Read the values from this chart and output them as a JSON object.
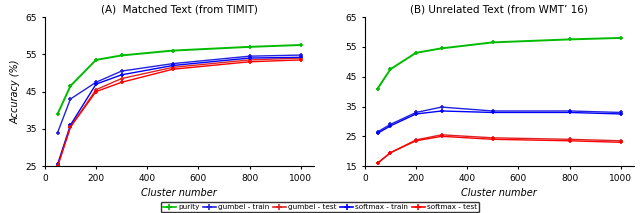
{
  "x": [
    50,
    100,
    200,
    300,
    500,
    800,
    1000
  ],
  "panel_A": {
    "title": "(A)  Matched Text (from TIMIT)",
    "purity": [
      39.0,
      46.5,
      53.5,
      54.7,
      56.0,
      57.0,
      57.5
    ],
    "gumbel_train": [
      34.0,
      43.0,
      47.5,
      50.5,
      52.5,
      54.5,
      54.8
    ],
    "gumbel_test": [
      25.0,
      35.5,
      45.5,
      48.5,
      51.5,
      53.5,
      54.0
    ],
    "softmax_train": [
      25.5,
      36.0,
      47.0,
      49.5,
      52.0,
      54.0,
      54.2
    ],
    "softmax_test": [
      25.0,
      35.5,
      45.0,
      47.5,
      51.0,
      53.0,
      53.5
    ],
    "ylim": [
      25,
      65
    ],
    "yticks": [
      25,
      35,
      45,
      55,
      65
    ],
    "xlabel": "Cluster number",
    "ylabel": "Accuracy (%)"
  },
  "panel_B": {
    "title": "(B) Unrelated Text (from WMT’ 16)",
    "purity": [
      41.0,
      47.5,
      53.0,
      54.5,
      56.5,
      57.5,
      58.0
    ],
    "gumbel_train": [
      26.5,
      29.0,
      33.0,
      34.8,
      33.5,
      33.5,
      33.0
    ],
    "gumbel_test": [
      16.0,
      19.5,
      23.8,
      25.5,
      24.5,
      24.0,
      23.5
    ],
    "softmax_train": [
      26.0,
      28.5,
      32.5,
      33.5,
      33.0,
      33.0,
      32.5
    ],
    "softmax_test": [
      16.0,
      19.5,
      23.5,
      25.0,
      24.0,
      23.5,
      23.0
    ],
    "ylim": [
      15,
      65
    ],
    "yticks": [
      15,
      25,
      35,
      45,
      55,
      65
    ],
    "xlabel": "Cluster number",
    "ylabel": "Accuracy (%)"
  },
  "colors": {
    "purity": "#00bb00",
    "gumbel_train": "#2222dd",
    "gumbel_test": "#dd2222",
    "softmax_train": "#0000ff",
    "softmax_test": "#ff0000"
  },
  "legend_labels": [
    "purity",
    "gumbel - train",
    "gumbel - test",
    "softmax - train",
    "softmax - test"
  ],
  "xticks": [
    0,
    200,
    400,
    600,
    800,
    1000
  ],
  "figsize": [
    6.4,
    2.13
  ],
  "dpi": 100
}
